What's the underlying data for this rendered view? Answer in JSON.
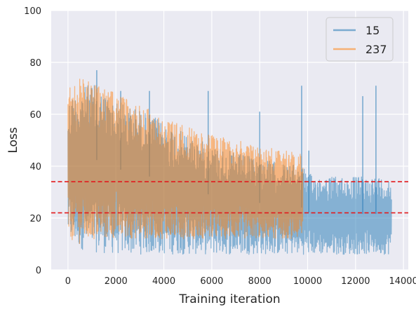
{
  "chart_data": {
    "type": "line",
    "xlabel": "Training iteration",
    "ylabel": "Loss",
    "xlim": [
      -700,
      14200
    ],
    "ylim": [
      0,
      100
    ],
    "xticks": [
      0,
      2000,
      4000,
      6000,
      8000,
      10000,
      12000,
      14000
    ],
    "xtick_labels": [
      "0",
      "2000",
      "4000",
      "6000",
      "8000",
      "10000",
      "12000",
      "14000"
    ],
    "yticks": [
      0,
      20,
      40,
      60,
      80,
      100
    ],
    "ytick_labels": [
      "0",
      "20",
      "40",
      "60",
      "80",
      "100"
    ],
    "grid": true,
    "legend_position": "top-right",
    "style": {
      "background": "#eaeaf2",
      "grid_color": "#ffffff",
      "threshold_color": "#e31a1c"
    },
    "series": [
      {
        "name": "15",
        "color": "#1f77b4",
        "x_range": [
          0,
          13500
        ],
        "band": {
          "x": [
            0,
            500,
            1000,
            2000,
            3000,
            4000,
            5000,
            6000,
            7000,
            8000,
            9000,
            9800,
            10000,
            11000,
            12000,
            13000,
            13500
          ],
          "upper": [
            66,
            70,
            72,
            65,
            62,
            57,
            52,
            48,
            45,
            43,
            41,
            40,
            37,
            36,
            36,
            36,
            35
          ],
          "lower": [
            12,
            8,
            7,
            6,
            6,
            6,
            6,
            6,
            6,
            6,
            6,
            6,
            6,
            6,
            6,
            6,
            6
          ]
        },
        "spikes": [
          {
            "x": 1200,
            "y": 77
          },
          {
            "x": 2200,
            "y": 69
          },
          {
            "x": 3400,
            "y": 69
          },
          {
            "x": 5850,
            "y": 69
          },
          {
            "x": 8000,
            "y": 61
          },
          {
            "x": 9750,
            "y": 71
          },
          {
            "x": 10050,
            "y": 46
          },
          {
            "x": 12300,
            "y": 67
          },
          {
            "x": 12850,
            "y": 71
          }
        ]
      },
      {
        "name": "237",
        "color": "#ff7f0e",
        "x_range": [
          0,
          9800
        ],
        "band": {
          "x": [
            0,
            500,
            1000,
            2000,
            3000,
            4000,
            5000,
            6000,
            7000,
            8000,
            9000,
            9800
          ],
          "upper": [
            70,
            74,
            72,
            68,
            64,
            59,
            55,
            52,
            50,
            48,
            46,
            45
          ],
          "lower": [
            12,
            10,
            11,
            12,
            12,
            12,
            12,
            12,
            12,
            12,
            12,
            12
          ]
        },
        "spikes": []
      }
    ],
    "threshold_lines": [
      34,
      22
    ]
  }
}
